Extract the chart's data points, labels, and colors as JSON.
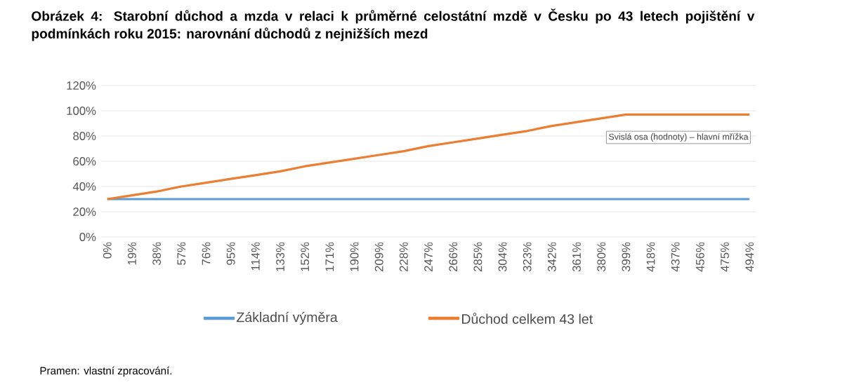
{
  "chart_data": {
    "type": "line",
    "title": "Obrázek 4: Starobní důchod a mzda v relaci k průměrné celostátní mzdě v Česku po 43 letech pojištění v podmínkách roku 2015: narovnání důchodů z nejnižších mezd",
    "categories": [
      "0%",
      "19%",
      "38%",
      "57%",
      "76%",
      "95%",
      "114%",
      "133%",
      "152%",
      "171%",
      "190%",
      "209%",
      "228%",
      "247%",
      "266%",
      "285%",
      "304%",
      "323%",
      "342%",
      "361%",
      "380%",
      "399%",
      "418%",
      "437%",
      "456%",
      "475%",
      "494%"
    ],
    "series": [
      {
        "name": "Základní výměra",
        "color": "#5b9bd5",
        "values": [
          30,
          30,
          30,
          30,
          30,
          30,
          30,
          30,
          30,
          30,
          30,
          30,
          30,
          30,
          30,
          30,
          30,
          30,
          30,
          30,
          30,
          30,
          30,
          30,
          30,
          30,
          30
        ]
      },
      {
        "name": "Důchod celkem 43 let",
        "color": "#ed7d31",
        "values": [
          30,
          33,
          36,
          40,
          43,
          46,
          49,
          52,
          56,
          59,
          62,
          65,
          68,
          72,
          75,
          78,
          81,
          84,
          88,
          91,
          94,
          97,
          97,
          97,
          97,
          97,
          97
        ]
      }
    ],
    "ylim": [
      0,
      120
    ],
    "yticks": [
      {
        "value": 0,
        "label": "0%"
      },
      {
        "value": 20,
        "label": "20%"
      },
      {
        "value": 40,
        "label": "40%"
      },
      {
        "value": 60,
        "label": "60%"
      },
      {
        "value": 80,
        "label": "80%"
      },
      {
        "value": 100,
        "label": "100%"
      },
      {
        "value": 120,
        "label": "120%"
      }
    ],
    "grid": "y",
    "legend": "bottom",
    "marker": "none",
    "line_style": "solid",
    "annotations": [
      "Svislá osa (hodnoty) – hlavní mřížka",
      "Pramen: vlastní zpracování."
    ]
  }
}
